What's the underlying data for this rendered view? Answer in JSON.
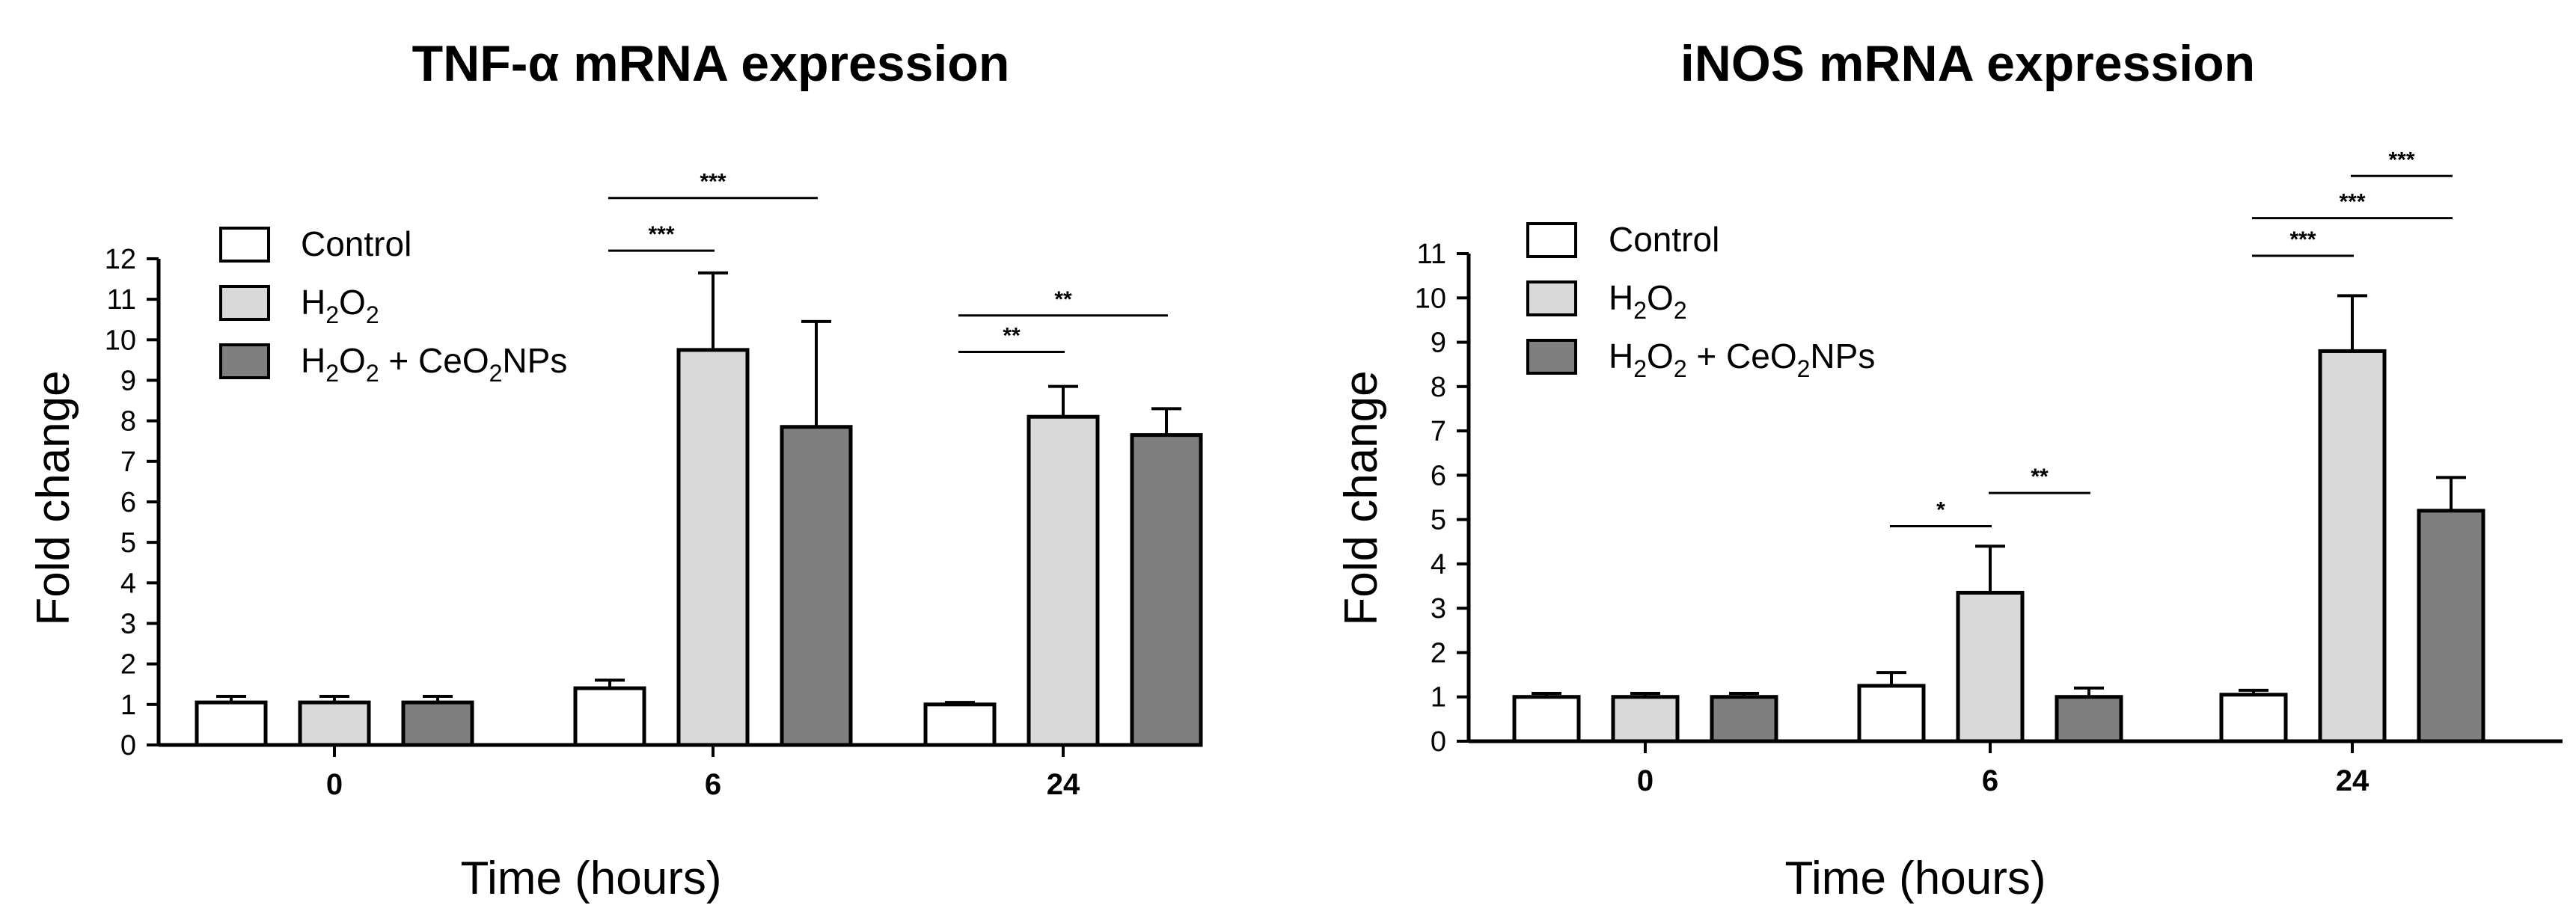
{
  "chart_data": [
    {
      "type": "bar",
      "title": "TNF-α mRNA expression",
      "xlabel": "Time (hours)",
      "ylabel": "Fold change",
      "ylim": [
        0,
        12
      ],
      "yticks": [
        "0",
        "1",
        "2",
        "3",
        "4",
        "5",
        "6",
        "7",
        "8",
        "9",
        "10",
        "11",
        "12"
      ],
      "categories": [
        "0",
        "6",
        "24"
      ],
      "series": [
        {
          "name": "Control",
          "color": "#ffffff",
          "values": [
            1.05,
            1.4,
            1.0
          ],
          "errors": [
            0.15,
            0.2,
            0.05
          ]
        },
        {
          "name": "H2O2",
          "color": "#d9d9d9",
          "values": [
            1.05,
            9.75,
            8.1
          ],
          "errors": [
            0.15,
            1.9,
            0.75
          ]
        },
        {
          "name": "H2O2 + CeO2NPs",
          "color": "#7f7f7f",
          "values": [
            1.05,
            7.85,
            7.65
          ],
          "errors": [
            0.15,
            2.6,
            0.65
          ]
        }
      ],
      "significance": [
        {
          "category": "6",
          "from": 0,
          "to": 1,
          "label": "***",
          "level": 12.2
        },
        {
          "category": "6",
          "from": 0,
          "to": 2,
          "label": "***",
          "level": 13.5
        },
        {
          "category": "24",
          "from": 0,
          "to": 1,
          "label": "**",
          "level": 9.7
        },
        {
          "category": "24",
          "from": 0,
          "to": 2,
          "label": "**",
          "level": 10.6
        }
      ]
    },
    {
      "type": "bar",
      "title": "iNOS mRNA expression",
      "xlabel": "Time (hours)",
      "ylabel": "Fold change",
      "ylim": [
        0,
        11
      ],
      "yticks": [
        "0",
        "1",
        "2",
        "3",
        "4",
        "5",
        "6",
        "7",
        "8",
        "9",
        "10",
        "11"
      ],
      "categories": [
        "0",
        "6",
        "24"
      ],
      "series": [
        {
          "name": "Control",
          "color": "#ffffff",
          "values": [
            1.0,
            1.25,
            1.05
          ],
          "errors": [
            0.08,
            0.3,
            0.1
          ]
        },
        {
          "name": "H2O2",
          "color": "#d9d9d9",
          "values": [
            1.0,
            3.35,
            8.8
          ],
          "errors": [
            0.08,
            1.05,
            1.25
          ]
        },
        {
          "name": "H2O2 + CeO2NPs",
          "color": "#7f7f7f",
          "values": [
            1.0,
            1.0,
            5.2
          ],
          "errors": [
            0.08,
            0.2,
            0.75
          ]
        }
      ],
      "significance": [
        {
          "category": "6",
          "from": 0,
          "to": 1,
          "label": "*",
          "level": 4.85
        },
        {
          "category": "6",
          "from": 1,
          "to": 2,
          "label": "**",
          "level": 5.6
        },
        {
          "category": "24",
          "from": 0,
          "to": 1,
          "label": "***",
          "level": 10.95
        },
        {
          "category": "24",
          "from": 0,
          "to": 2,
          "label": "***",
          "level": 11.8
        },
        {
          "category": "24",
          "from": 1,
          "to": 2,
          "label": "***",
          "level": 12.75
        }
      ]
    }
  ]
}
